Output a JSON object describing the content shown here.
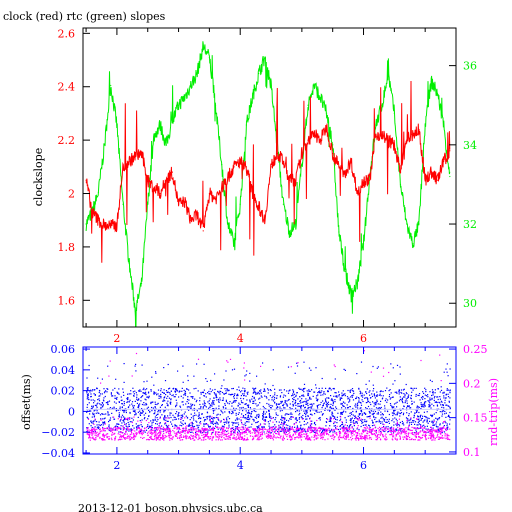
{
  "title": "clock (red) rtc (green) slopes",
  "footer": "2013-12-01 boson.physics.ubc.ca",
  "colors": {
    "red": "#ff0000",
    "green": "#00ee00",
    "blue": "#0000ff",
    "magenta": "#ff00ff",
    "axis": "#000000"
  },
  "chart_data": [
    {
      "type": "line",
      "ylabel": "clockslope",
      "y2label": "",
      "xlim": [
        1.45,
        7.5
      ],
      "ylim": [
        1.5,
        2.62
      ],
      "y2lim": [
        29.4,
        36.95
      ],
      "xticks": [
        2,
        4,
        6
      ],
      "yticks": [
        1.6,
        1.8,
        2,
        2.2,
        2.4,
        2.6
      ],
      "ytick_labels": [
        "1.6",
        "1.8",
        "2",
        "2.2",
        "2.4",
        "2.6"
      ],
      "y2ticks": [
        30,
        32,
        34,
        36
      ],
      "series": [
        {
          "name": "clock",
          "color": "red",
          "axis": "left",
          "x": [
            1.5,
            1.6,
            1.7,
            1.8,
            1.9,
            2.0,
            2.1,
            2.2,
            2.3,
            2.4,
            2.5,
            2.6,
            2.7,
            2.8,
            2.9,
            3.0,
            3.1,
            3.2,
            3.3,
            3.4,
            3.5,
            3.6,
            3.7,
            3.8,
            3.9,
            4.0,
            4.1,
            4.2,
            4.3,
            4.4,
            4.5,
            4.6,
            4.7,
            4.8,
            4.9,
            5.0,
            5.1,
            5.2,
            5.3,
            5.4,
            5.5,
            5.6,
            5.7,
            5.8,
            5.9,
            6.0,
            6.1,
            6.2,
            6.3,
            6.4,
            6.5,
            6.6,
            6.7,
            6.8,
            6.9,
            7.0,
            7.1,
            7.2,
            7.3,
            7.4
          ],
          "y": [
            2.05,
            1.93,
            1.9,
            1.88,
            1.88,
            1.88,
            2.1,
            2.12,
            2.14,
            2.15,
            2.05,
            2.02,
            2.0,
            2.05,
            2.08,
            1.96,
            1.97,
            1.9,
            1.92,
            1.86,
            2.0,
            1.98,
            2.02,
            2.06,
            2.1,
            2.12,
            2.1,
            2.0,
            1.95,
            1.9,
            2.1,
            2.15,
            2.12,
            2.05,
            2.05,
            2.15,
            2.2,
            2.22,
            2.2,
            2.25,
            2.15,
            2.1,
            2.08,
            2.12,
            2.0,
            2.05,
            2.05,
            2.22,
            2.22,
            2.2,
            2.18,
            2.08,
            2.2,
            2.22,
            2.24,
            2.05,
            2.08,
            2.05,
            2.12,
            2.16
          ]
        },
        {
          "name": "rtc",
          "color": "green",
          "axis": "right",
          "x": [
            1.5,
            1.6,
            1.7,
            1.8,
            1.9,
            2.0,
            2.1,
            2.2,
            2.3,
            2.4,
            2.5,
            2.6,
            2.7,
            2.8,
            2.9,
            3.0,
            3.1,
            3.2,
            3.3,
            3.4,
            3.5,
            3.6,
            3.7,
            3.8,
            3.9,
            4.0,
            4.1,
            4.2,
            4.3,
            4.4,
            4.5,
            4.6,
            4.7,
            4.8,
            4.9,
            5.0,
            5.1,
            5.2,
            5.3,
            5.4,
            5.5,
            5.6,
            5.7,
            5.8,
            5.9,
            6.0,
            6.1,
            6.2,
            6.3,
            6.4,
            6.5,
            6.6,
            6.7,
            6.8,
            6.9,
            7.0,
            7.1,
            7.2,
            7.3,
            7.4
          ],
          "y": [
            32.0,
            32.3,
            32.8,
            34.0,
            35.5,
            34.5,
            32.5,
            31.0,
            29.8,
            30.5,
            32.5,
            34.2,
            34.5,
            34.0,
            34.6,
            35.0,
            35.2,
            35.5,
            35.8,
            36.5,
            36.2,
            35.0,
            33.5,
            32.0,
            31.5,
            32.5,
            34.5,
            35.2,
            35.8,
            36.2,
            35.5,
            34.0,
            32.5,
            31.8,
            32.0,
            33.5,
            35.0,
            35.5,
            35.2,
            34.8,
            34.0,
            31.8,
            30.8,
            30.2,
            30.5,
            31.5,
            33.2,
            34.5,
            35.0,
            35.8,
            34.8,
            33.0,
            32.0,
            31.5,
            32.0,
            34.5,
            35.6,
            35.3,
            34.5,
            33.2
          ]
        }
      ]
    },
    {
      "type": "scatter",
      "ylabel": "offset(ms)",
      "y2label": "rnd-trip(ms)",
      "xlim": [
        1.45,
        7.5
      ],
      "ylim": [
        -0.041,
        0.062
      ],
      "y2lim": [
        0.097,
        0.253
      ],
      "xticks": [
        2,
        4,
        6
      ],
      "yticks": [
        -0.04,
        -0.02,
        0,
        0.02,
        0.04,
        0.06
      ],
      "ytick_labels": [
        "−0.04",
        "−0.02",
        "0",
        "0.02",
        "0.04",
        "0.06"
      ],
      "y2ticks": [
        0.1,
        0.15,
        0.2,
        0.25
      ],
      "series": [
        {
          "name": "offset",
          "color": "blue",
          "axis": "left",
          "band": [
            -0.02,
            0.023
          ]
        },
        {
          "name": "rnd-trip",
          "color": "magenta",
          "axis": "right",
          "band": [
            0.118,
            0.152
          ]
        }
      ]
    }
  ]
}
